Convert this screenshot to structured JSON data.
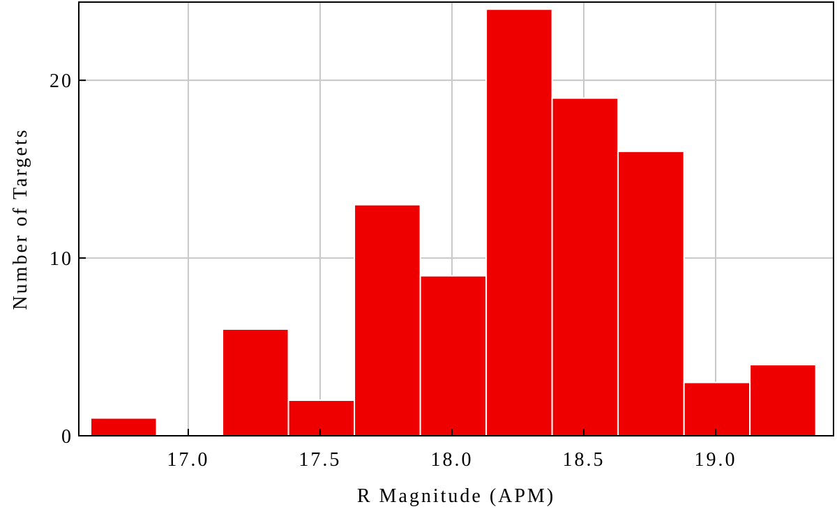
{
  "chart_data": {
    "type": "histogram",
    "xlabel": "R Magnitude (APM)",
    "ylabel": "Number of Targets",
    "bins": [
      16.63,
      16.88,
      17.13,
      17.38,
      17.63,
      17.88,
      18.13,
      18.38,
      18.63,
      18.88,
      19.13,
      19.38
    ],
    "counts": [
      1,
      0,
      6,
      2,
      13,
      9,
      24,
      19,
      16,
      3,
      4
    ],
    "color": "#ee0000",
    "xlim": [
      16.585,
      19.447
    ],
    "ylim": [
      0,
      24.4
    ],
    "xticks": [
      {
        "value": 17,
        "label": "17.0"
      },
      {
        "value": 17.5,
        "label": "17.5"
      },
      {
        "value": 18,
        "label": "18.0"
      },
      {
        "value": 18.5,
        "label": "18.5"
      },
      {
        "value": 19,
        "label": "19.0"
      }
    ],
    "yticks": [
      0,
      10,
      20
    ],
    "grid": true
  }
}
